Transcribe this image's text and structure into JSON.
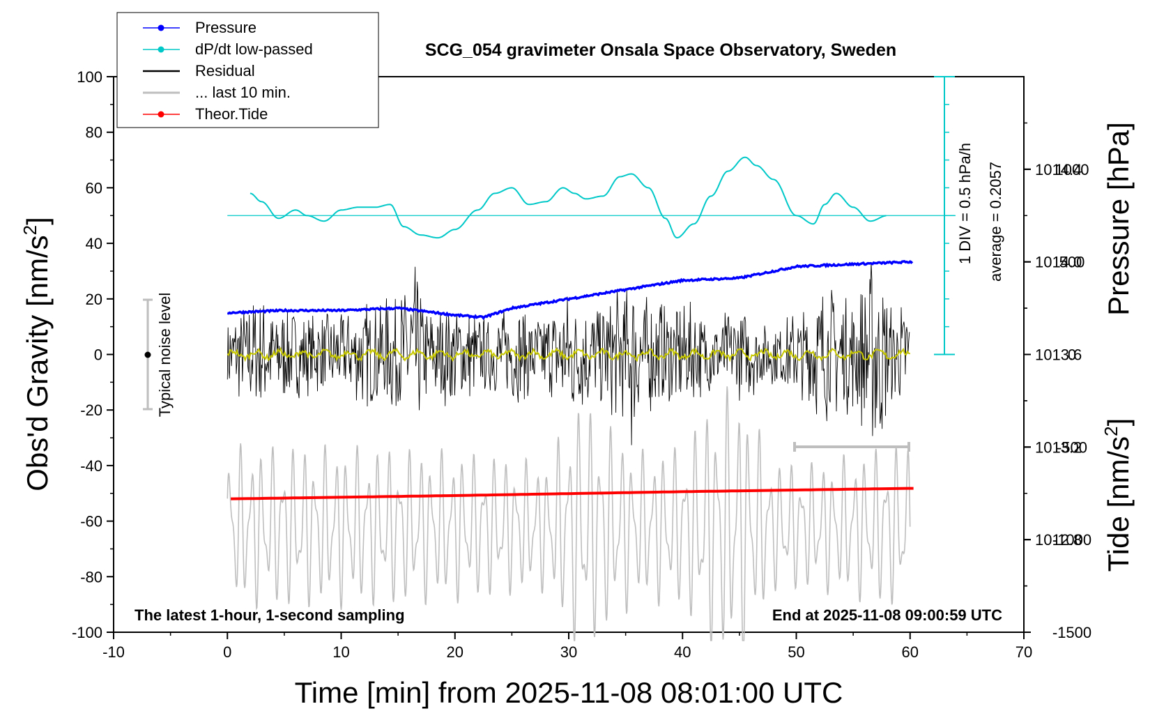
{
  "chart_data": {
    "type": "line",
    "title": "SCG_054 gravimeter Onsala Space Observatory, Sweden",
    "annotation_left": "The latest 1-hour, 1-second sampling",
    "annotation_right": "End at 2025-11-08 09:00:59 UTC",
    "xlabel": "Time [min] from 2025-11-08 08:01:00 UTC",
    "ylabel": "Obs'd Gravity [nm/s²]",
    "ylabel_main": "Obs'd Gravity [nm/s",
    "ylabel_sup": "2",
    "ylabel_close": "]",
    "y2label": "Pressure [hPa]",
    "y3label_main": "Tide [nm/s",
    "y3label_sup": "2",
    "y3label_close": "]",
    "xlim": [
      -10,
      70
    ],
    "ylim": [
      -100,
      100
    ],
    "pressure_lim": [
      1012.4,
      1014.8
    ],
    "tide_lim": [
      -1500,
      1500
    ],
    "x_ticks": [
      "-10",
      "0",
      "10",
      "20",
      "30",
      "40",
      "50",
      "60",
      "70"
    ],
    "y_ticks": [
      "-100",
      "-80",
      "-60",
      "-40",
      "-20",
      "0",
      "20",
      "40",
      "60",
      "80",
      "100"
    ],
    "pressure_ticks": [
      "1012.8",
      "1013.2",
      "1013.6",
      "1014.0",
      "1014.4"
    ],
    "tide_ticks": [
      "1000",
      "500",
      "0",
      "-500",
      "-1000",
      "-1500"
    ],
    "legend": [
      {
        "label": "Pressure",
        "color": "#0000ff",
        "marker": true
      },
      {
        "label": "dP/dt low-passed",
        "color": "#00c8c8",
        "marker": true
      },
      {
        "label": "Residual",
        "color": "#000000",
        "marker": false
      },
      {
        "label": "... last 10 min.",
        "color": "#bebebe",
        "marker": false
      },
      {
        "label": "Theor.Tide",
        "color": "#ff0000",
        "marker": true
      }
    ],
    "legend_position": "top-left",
    "noise_label": "Typical noise level",
    "scale_bar_label_1": "1 DIV = 0.5 hPa/h",
    "scale_bar_label_2": "average = 0.2057",
    "series": {
      "pressure_hpa": {
        "x": [
          0,
          5,
          10,
          15,
          20,
          22.5,
          25,
          30,
          35,
          40,
          45,
          50,
          55,
          60
        ],
        "y": [
          1013.78,
          1013.79,
          1013.79,
          1013.8,
          1013.77,
          1013.76,
          1013.8,
          1013.84,
          1013.88,
          1013.92,
          1013.93,
          1013.98,
          1013.99,
          1014.0
        ]
      },
      "dpdt_lowpassed": {
        "x": [
          2,
          3,
          4.5,
          6,
          7,
          8.5,
          10,
          11.5,
          13,
          14.3,
          15.5,
          17,
          18.5,
          20,
          22,
          23.5,
          25,
          26.5,
          28,
          29.5,
          30.5,
          31.5,
          33,
          34.5,
          35.5,
          37,
          38.5,
          39.5,
          41,
          42.5,
          44,
          45.5,
          46.5,
          48,
          50,
          51.5,
          52.5,
          53.5,
          55,
          56.5,
          58
        ],
        "y": [
          58,
          55,
          49,
          52,
          50,
          48,
          52,
          53,
          53,
          54,
          46,
          43,
          42,
          45,
          52,
          58,
          60,
          54,
          55,
          60,
          58,
          56,
          57,
          64,
          65,
          60,
          49,
          42,
          47,
          57,
          66,
          71,
          68,
          63,
          50,
          47,
          54,
          58,
          53,
          48,
          50
        ]
      },
      "residual_envelope": {
        "x": [
          0,
          2.5,
          5,
          7.5,
          10,
          12.5,
          15,
          16.5,
          17.5,
          20,
          22.5,
          25,
          27.5,
          30,
          32.5,
          35,
          35.7,
          36.5,
          40,
          42.5,
          45,
          47.5,
          50,
          52.5,
          55,
          57,
          58.5,
          60
        ],
        "amp": [
          15,
          22,
          18,
          15,
          16,
          20,
          22,
          34,
          18,
          20,
          14,
          18,
          16,
          24,
          20,
          26,
          38,
          22,
          20,
          15,
          18,
          12,
          16,
          26,
          22,
          38,
          18,
          22
        ]
      },
      "theor_tide": {
        "x": [
          0,
          10,
          20,
          30,
          40,
          50,
          60
        ],
        "y": [
          -52,
          -51.4,
          -50.8,
          -50.1,
          -49.4,
          -48.8,
          -48.2
        ]
      }
    }
  }
}
